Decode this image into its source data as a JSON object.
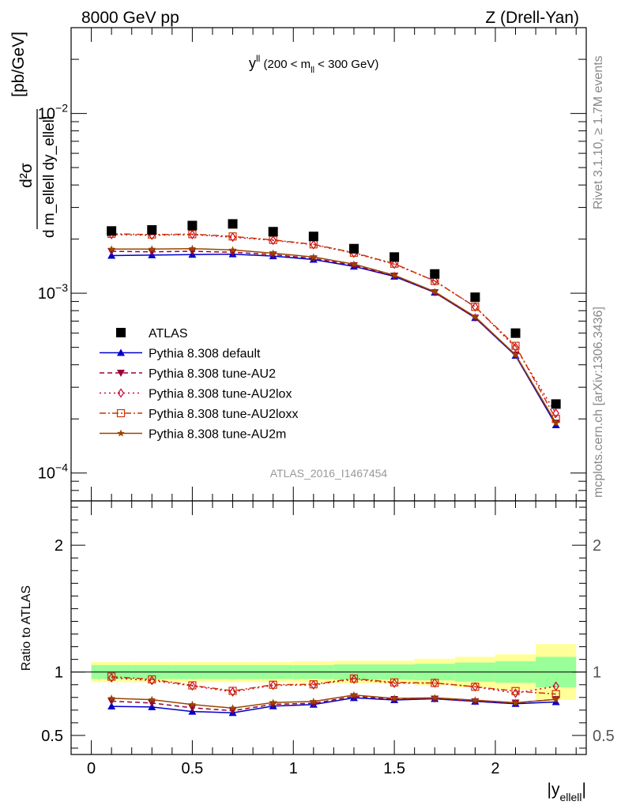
{
  "header": {
    "left": "8000 GeV pp",
    "right": "Z (Drell-Yan)"
  },
  "side": {
    "rivet": "Rivet 3.1.10, ≥ 1.7M events",
    "mcplots": "mcplots.cern.ch [arXiv:1306.3436]"
  },
  "watermark": "ATLAS_2016_I1467454",
  "colors": {
    "atlas": "#000000",
    "default": "#0000cc",
    "au2": "#990033",
    "au2lox": "#cc0033",
    "au2loxx": "#cc3300",
    "au2m": "#994400",
    "band_inner": "#99ff99",
    "band_outer": "#ffff99"
  },
  "chart_data": {
    "type": "line",
    "title": "y^{ll} (200 < m_{ll} < 300 GeV)",
    "title_parts": {
      "main": "y",
      "sup": "ll",
      "mid": " (200 < m",
      "sub": "ll",
      "end": " < 300 GeV)"
    },
    "ylabel_parts": {
      "num": "d²σ",
      "den": "d m_ellell dy_ellell",
      "unit": "[pb/GeV]"
    },
    "xlabel": "|y_ellell|",
    "xlabel_parts": {
      "main": "|y",
      "sub": "ellell",
      "end": "|"
    },
    "ratio_ylabel": "Ratio to ATLAS",
    "xlim": [
      -0.1,
      2.45
    ],
    "ylim": [
      7e-05,
      0.03
    ],
    "yscale": "log",
    "ratio_ylim": [
      0.35,
      2.35
    ],
    "x_ticks": [
      "0",
      "0.5",
      "1",
      "1.5",
      "2"
    ],
    "x_tick_values": [
      0,
      0.5,
      1,
      1.5,
      2
    ],
    "y_ticks": [
      "10^-4",
      "10^-3",
      "10^-2"
    ],
    "y_tick_values": [
      0.0001,
      0.001,
      0.01
    ],
    "ratio_ticks": [
      "0.5",
      "1",
      "2"
    ],
    "ratio_tick_values": [
      0.5,
      1,
      2
    ],
    "x": [
      0.1,
      0.3,
      0.5,
      0.7,
      0.9,
      1.1,
      1.3,
      1.5,
      1.7,
      1.9,
      2.1,
      2.3
    ],
    "xedges": [
      0,
      0.2,
      0.4,
      0.6,
      0.8,
      1.0,
      1.2,
      1.4,
      1.6,
      1.8,
      2.0,
      2.2,
      2.4
    ],
    "data": {
      "name": "ATLAS",
      "values": [
        0.00222,
        0.00225,
        0.00238,
        0.00243,
        0.0022,
        0.00207,
        0.00177,
        0.00159,
        0.00128,
        0.00095,
        0.0006,
        0.000242
      ],
      "band_inner": [
        0.055,
        0.055,
        0.055,
        0.055,
        0.055,
        0.055,
        0.06,
        0.06,
        0.065,
        0.075,
        0.085,
        0.12
      ],
      "band_outer": [
        0.08,
        0.08,
        0.08,
        0.08,
        0.08,
        0.085,
        0.09,
        0.09,
        0.105,
        0.12,
        0.14,
        0.22
      ]
    },
    "series": [
      {
        "name": "Pythia 8.308 default",
        "key": "default",
        "marker": "triangle-up",
        "dash": "",
        "values": [
          0.00162,
          0.00163,
          0.00164,
          0.00165,
          0.00161,
          0.00154,
          0.00141,
          0.00124,
          0.00101,
          0.00073,
          0.00045,
          0.000185
        ]
      },
      {
        "name": "Pythia 8.308 tune-AU2",
        "key": "au2",
        "marker": "triangle-down",
        "dash": "6,4",
        "values": [
          0.00171,
          0.0017,
          0.00171,
          0.00169,
          0.00164,
          0.00156,
          0.00143,
          0.00125,
          0.00101,
          0.00073,
          0.000455,
          0.00019
        ]
      },
      {
        "name": "Pythia 8.308 tune-AU2lox",
        "key": "au2lox",
        "marker": "diamond-open",
        "dash": "2,4",
        "values": [
          0.00212,
          0.0021,
          0.00212,
          0.00205,
          0.00197,
          0.00186,
          0.00167,
          0.00145,
          0.00117,
          0.00084,
          0.0005,
          0.000215
        ]
      },
      {
        "name": "Pythia 8.308 tune-AU2loxx",
        "key": "au2loxx",
        "marker": "square-open",
        "dash": "8,3,2,3",
        "values": [
          0.00214,
          0.00212,
          0.00213,
          0.00207,
          0.00198,
          0.00187,
          0.00168,
          0.00146,
          0.00117,
          0.00084,
          0.00051,
          0.0002
        ]
      },
      {
        "name": "Pythia 8.308 tune-AU2m",
        "key": "au2m",
        "marker": "star",
        "dash": "",
        "values": [
          0.00176,
          0.00176,
          0.00177,
          0.00174,
          0.00167,
          0.00159,
          0.00145,
          0.00126,
          0.00102,
          0.00074,
          0.000455,
          0.00019
        ]
      }
    ],
    "legend_placement": "lower-left"
  }
}
